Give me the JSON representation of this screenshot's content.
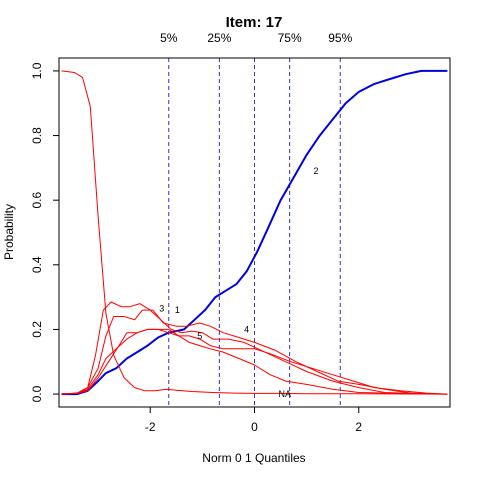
{
  "chart_data": {
    "type": "line",
    "title": "Item:  17",
    "xlabel": "Norm 0 1 Quantiles",
    "ylabel": "Probability",
    "xlim": [
      -3.75,
      3.75
    ],
    "ylim": [
      -0.04,
      1.04
    ],
    "x_ticks": [
      {
        "value": -2,
        "label": "-2"
      },
      {
        "value": 0,
        "label": "0"
      },
      {
        "value": 2,
        "label": "2"
      }
    ],
    "y_ticks": [
      {
        "value": 0.0,
        "label": "0.0"
      },
      {
        "value": 0.2,
        "label": "0.2"
      },
      {
        "value": 0.4,
        "label": "0.4"
      },
      {
        "value": 0.6,
        "label": "0.6"
      },
      {
        "value": 0.8,
        "label": "0.8"
      },
      {
        "value": 1.0,
        "label": "1.0"
      }
    ],
    "quantile_lines": [
      {
        "x": -1.645,
        "label": "5%"
      },
      {
        "x": -0.674,
        "label": "25%"
      },
      {
        "x": 0.0,
        "label": ""
      },
      {
        "x": 0.674,
        "label": "75%"
      },
      {
        "x": 1.645,
        "label": "95%"
      }
    ],
    "grid": false,
    "colors": {
      "key": "#0000dd",
      "distractor": "#ff0000",
      "quantile": "#3333cc"
    },
    "series": [
      {
        "name": "2",
        "key": true,
        "label_at": [
          1.18,
          0.69
        ],
        "points": [
          [
            -3.7,
            0
          ],
          [
            -3.4,
            0
          ],
          [
            -3.2,
            0.01
          ],
          [
            -3.0,
            0.04
          ],
          [
            -2.85,
            0.065
          ],
          [
            -2.65,
            0.08
          ],
          [
            -2.45,
            0.11
          ],
          [
            -2.25,
            0.13
          ],
          [
            -2.05,
            0.15
          ],
          [
            -1.85,
            0.175
          ],
          [
            -1.65,
            0.19
          ],
          [
            -1.5,
            0.195
          ],
          [
            -1.35,
            0.2
          ],
          [
            -1.15,
            0.23
          ],
          [
            -0.95,
            0.26
          ],
          [
            -0.75,
            0.3
          ],
          [
            -0.55,
            0.32
          ],
          [
            -0.35,
            0.34
          ],
          [
            -0.15,
            0.38
          ],
          [
            0.05,
            0.44
          ],
          [
            0.25,
            0.51
          ],
          [
            0.5,
            0.6
          ],
          [
            0.75,
            0.67
          ],
          [
            1.0,
            0.74
          ],
          [
            1.25,
            0.8
          ],
          [
            1.5,
            0.85
          ],
          [
            1.75,
            0.9
          ],
          [
            2.0,
            0.935
          ],
          [
            2.3,
            0.96
          ],
          [
            2.6,
            0.975
          ],
          [
            2.9,
            0.99
          ],
          [
            3.2,
            1.0
          ],
          [
            3.7,
            1.0
          ]
        ]
      },
      {
        "name": "3",
        "key": false,
        "label_at": [
          -1.78,
          0.265
        ],
        "points": [
          [
            -3.7,
            1.0
          ],
          [
            -3.45,
            0.995
          ],
          [
            -3.3,
            0.98
          ],
          [
            -3.15,
            0.89
          ],
          [
            -3.0,
            0.55
          ],
          [
            -2.85,
            0.25
          ],
          [
            -2.7,
            0.12
          ],
          [
            -2.5,
            0.05
          ],
          [
            -2.3,
            0.02
          ],
          [
            -2.1,
            0.01
          ],
          [
            -1.9,
            0.01
          ],
          [
            -1.7,
            0.015
          ],
          [
            -1.5,
            0.012
          ],
          [
            -1.2,
            0.008
          ],
          [
            -0.8,
            0.005
          ],
          [
            -0.4,
            0.003
          ],
          [
            0,
            0.002
          ],
          [
            0.5,
            0.002
          ],
          [
            1.0,
            0.001
          ],
          [
            2.0,
            0.001
          ],
          [
            3.7,
            0.0
          ]
        ]
      },
      {
        "name": "1",
        "key": false,
        "label_at": [
          -1.48,
          0.26
        ],
        "points": [
          [
            -3.7,
            0
          ],
          [
            -3.4,
            0.003
          ],
          [
            -3.2,
            0.02
          ],
          [
            -3.05,
            0.12
          ],
          [
            -2.9,
            0.26
          ],
          [
            -2.75,
            0.285
          ],
          [
            -2.55,
            0.27
          ],
          [
            -2.4,
            0.27
          ],
          [
            -2.2,
            0.28
          ],
          [
            -2.0,
            0.26
          ],
          [
            -1.8,
            0.23
          ],
          [
            -1.6,
            0.2
          ],
          [
            -1.4,
            0.19
          ],
          [
            -1.2,
            0.195
          ],
          [
            -1.0,
            0.19
          ],
          [
            -0.8,
            0.17
          ],
          [
            -0.5,
            0.17
          ],
          [
            -0.2,
            0.16
          ],
          [
            0.2,
            0.13
          ],
          [
            0.6,
            0.1
          ],
          [
            1.0,
            0.07
          ],
          [
            1.5,
            0.04
          ],
          [
            2.0,
            0.02
          ],
          [
            2.5,
            0.005
          ],
          [
            3.0,
            0.002
          ],
          [
            3.7,
            0
          ]
        ]
      },
      {
        "name": "5",
        "key": false,
        "label_at": [
          -1.05,
          0.18
        ],
        "points": [
          [
            -3.7,
            0
          ],
          [
            -3.4,
            0.003
          ],
          [
            -3.2,
            0.02
          ],
          [
            -3.0,
            0.08
          ],
          [
            -2.85,
            0.18
          ],
          [
            -2.7,
            0.24
          ],
          [
            -2.5,
            0.24
          ],
          [
            -2.3,
            0.23
          ],
          [
            -2.15,
            0.26
          ],
          [
            -1.95,
            0.26
          ],
          [
            -1.75,
            0.22
          ],
          [
            -1.5,
            0.21
          ],
          [
            -1.3,
            0.21
          ],
          [
            -1.05,
            0.22
          ],
          [
            -0.85,
            0.21
          ],
          [
            -0.6,
            0.19
          ],
          [
            -0.3,
            0.175
          ],
          [
            0,
            0.16
          ],
          [
            0.4,
            0.135
          ],
          [
            0.8,
            0.1
          ],
          [
            1.2,
            0.07
          ],
          [
            1.6,
            0.04
          ],
          [
            2.0,
            0.03
          ],
          [
            2.5,
            0.015
          ],
          [
            3.0,
            0.003
          ],
          [
            3.7,
            0
          ]
        ]
      },
      {
        "name": "4",
        "key": false,
        "label_at": [
          -0.15,
          0.2
        ],
        "points": [
          [
            -3.7,
            0
          ],
          [
            -3.4,
            0.003
          ],
          [
            -3.2,
            0.015
          ],
          [
            -3.0,
            0.06
          ],
          [
            -2.85,
            0.11
          ],
          [
            -2.65,
            0.14
          ],
          [
            -2.45,
            0.17
          ],
          [
            -2.25,
            0.19
          ],
          [
            -2.05,
            0.2
          ],
          [
            -1.85,
            0.2
          ],
          [
            -1.65,
            0.19
          ],
          [
            -1.45,
            0.18
          ],
          [
            -1.25,
            0.18
          ],
          [
            -1.05,
            0.17
          ],
          [
            -0.85,
            0.15
          ],
          [
            -0.6,
            0.14
          ],
          [
            -0.3,
            0.14
          ],
          [
            0,
            0.14
          ],
          [
            0.3,
            0.125
          ],
          [
            0.7,
            0.1
          ],
          [
            1.1,
            0.08
          ],
          [
            1.5,
            0.06
          ],
          [
            1.9,
            0.04
          ],
          [
            2.3,
            0.02
          ],
          [
            2.8,
            0.01
          ],
          [
            3.3,
            0.003
          ],
          [
            3.7,
            0
          ]
        ]
      },
      {
        "name": "NA",
        "key": false,
        "label_at": [
          0.58,
          0.0
        ],
        "points": [
          [
            -3.7,
            0
          ],
          [
            -3.4,
            0.002
          ],
          [
            -3.2,
            0.01
          ],
          [
            -3.0,
            0.05
          ],
          [
            -2.8,
            0.1
          ],
          [
            -2.6,
            0.15
          ],
          [
            -2.45,
            0.19
          ],
          [
            -2.25,
            0.19
          ],
          [
            -2.05,
            0.2
          ],
          [
            -1.85,
            0.2
          ],
          [
            -1.65,
            0.2
          ],
          [
            -1.45,
            0.18
          ],
          [
            -1.25,
            0.16
          ],
          [
            -1.05,
            0.15
          ],
          [
            -0.85,
            0.14
          ],
          [
            -0.6,
            0.13
          ],
          [
            -0.3,
            0.11
          ],
          [
            0,
            0.09
          ],
          [
            0.3,
            0.06
          ],
          [
            0.6,
            0.04
          ],
          [
            1.0,
            0.03
          ],
          [
            1.5,
            0.015
          ],
          [
            2.0,
            0.005
          ],
          [
            2.5,
            0.003
          ],
          [
            3.0,
            0.001
          ],
          [
            3.7,
            0
          ]
        ]
      }
    ]
  }
}
